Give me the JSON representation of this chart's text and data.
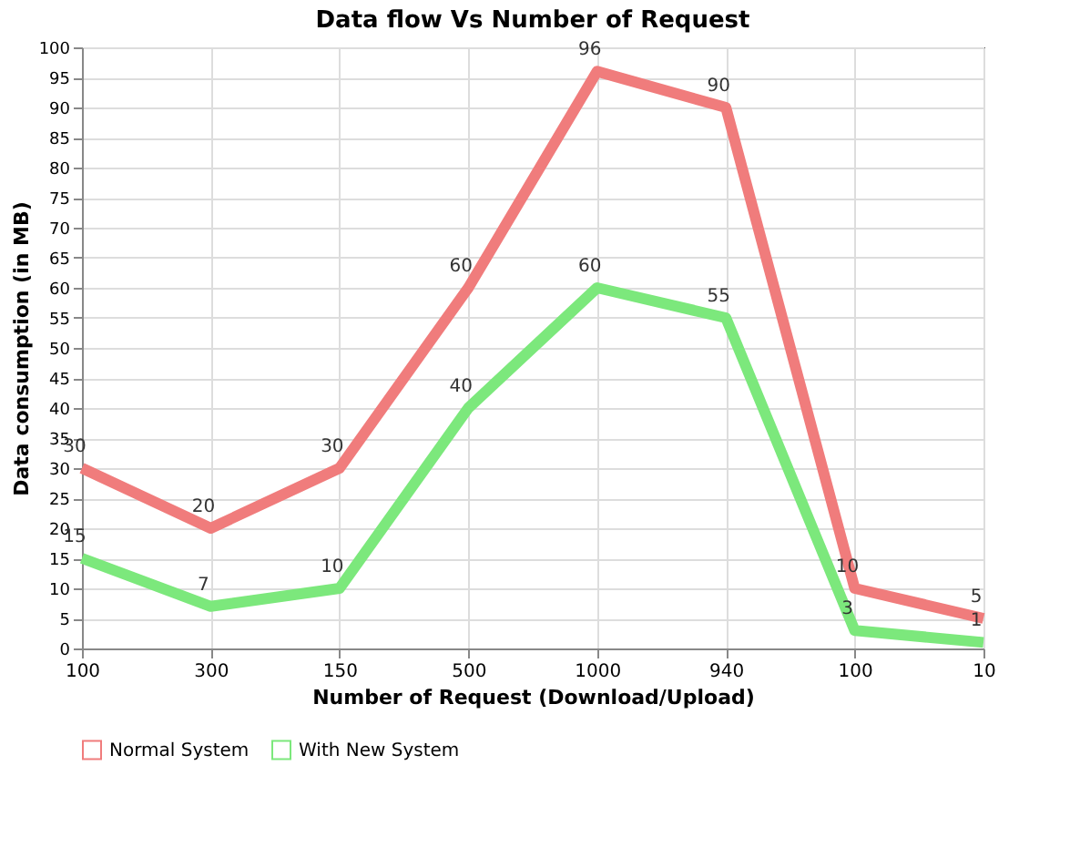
{
  "chart_data": {
    "type": "line",
    "title": "Data flow Vs Number of Request",
    "xlabel": "Number of Request (Download/Upload)",
    "ylabel": "Data consumption  (in MB)",
    "categories": [
      "100",
      "300",
      "150",
      "500",
      "1000",
      "940",
      "100",
      "10"
    ],
    "series": [
      {
        "name": "Normal System",
        "color": "#f07c7c",
        "values": [
          30,
          20,
          30,
          60,
          96,
          90,
          10,
          5
        ]
      },
      {
        "name": "With New System",
        "color": "#7ce87c",
        "values": [
          15,
          7,
          10,
          40,
          60,
          55,
          3,
          1
        ]
      }
    ],
    "ylim": [
      0,
      100
    ],
    "yticks": [
      0,
      5,
      10,
      15,
      20,
      25,
      30,
      35,
      40,
      45,
      50,
      55,
      60,
      65,
      70,
      75,
      80,
      85,
      90,
      95,
      100
    ],
    "grid": true,
    "legend": "bottom left",
    "data_labels": true,
    "marker": "none",
    "line_style": "solid"
  }
}
